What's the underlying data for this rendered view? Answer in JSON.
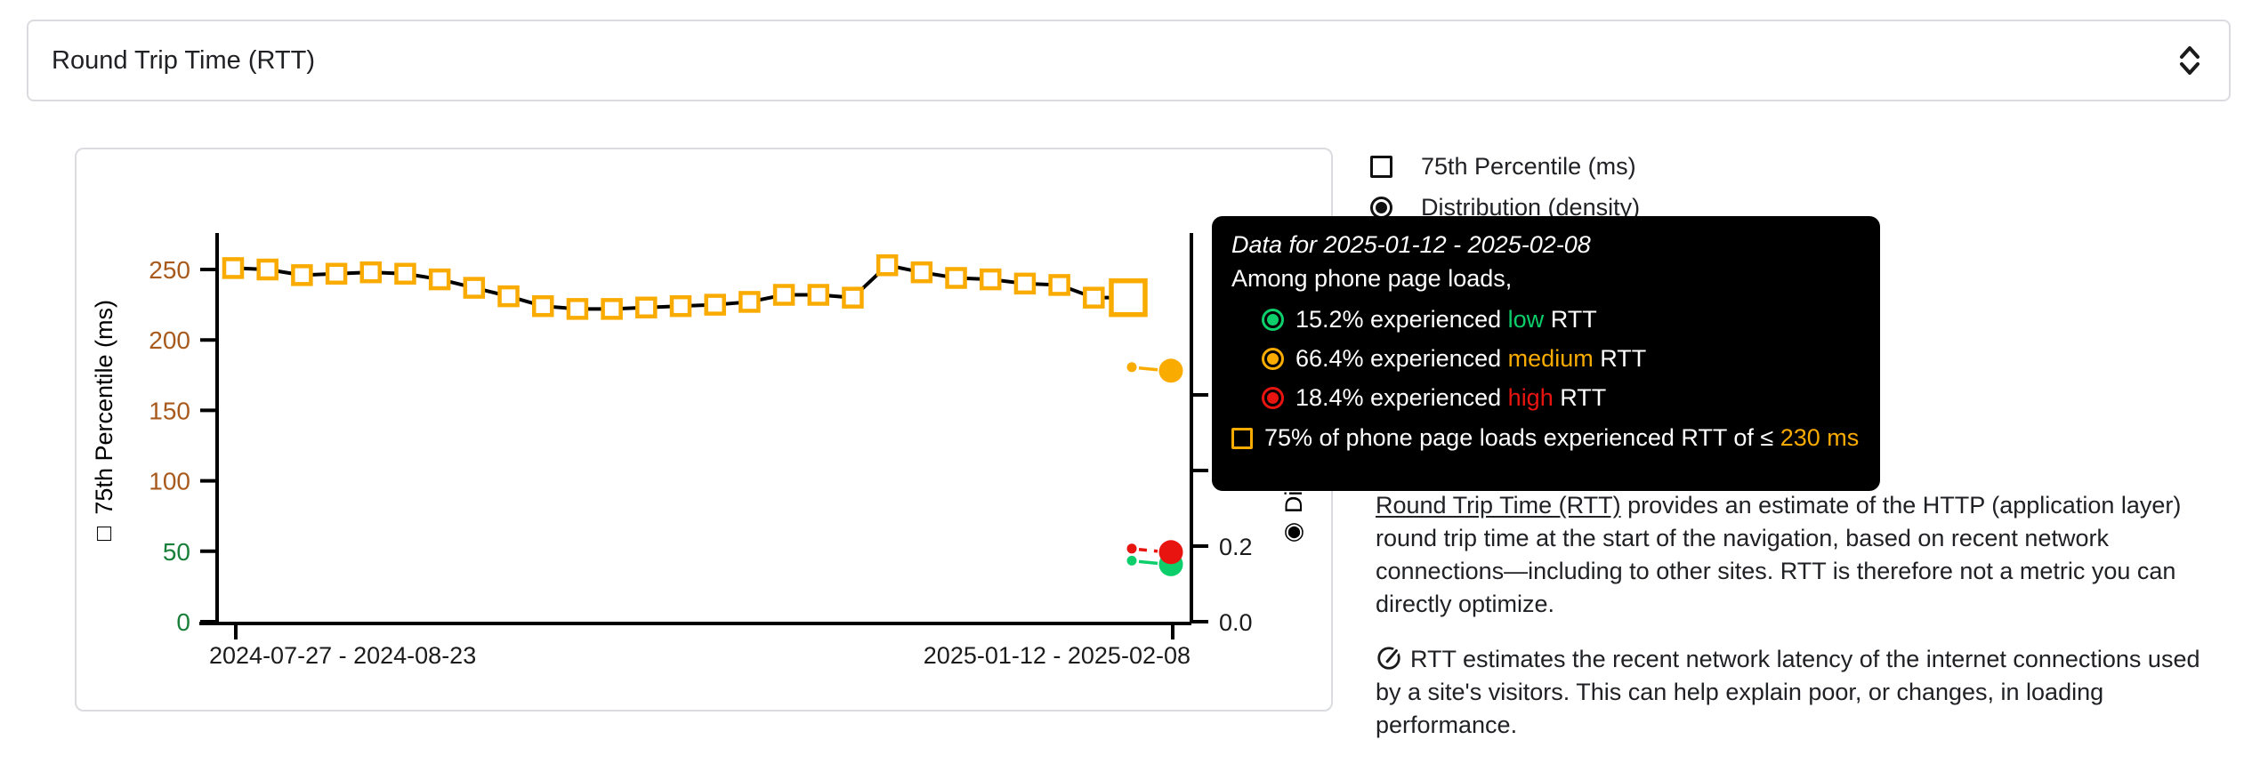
{
  "selector": {
    "value": "Round Trip Time (RTT)",
    "icon": "unfold-more-icon"
  },
  "legend": {
    "items": [
      {
        "label": "75th Percentile (ms)",
        "control": "checkbox",
        "checked": false
      },
      {
        "label": "Distribution (density)",
        "control": "radio",
        "checked": true
      }
    ]
  },
  "chart_data": {
    "type": "line",
    "series": [
      {
        "name": "75th Percentile (ms)",
        "unit": "ms",
        "values": [
          251,
          250,
          246,
          247,
          248,
          247,
          243,
          237,
          231,
          224,
          222,
          222,
          223,
          224,
          225,
          227,
          232,
          232,
          230,
          253,
          248,
          244,
          243,
          240,
          239,
          230,
          230
        ]
      }
    ],
    "highlighted_point": {
      "index": 26,
      "value": 230,
      "period": "2025-01-12 - 2025-02-08"
    },
    "x_tick_labels": [
      "2024-07-27 - 2024-08-23",
      "2025-01-12 - 2025-02-08"
    ],
    "primary_axis": {
      "label": "75th Percentile (ms)",
      "ticks": [
        0,
        50,
        100,
        150,
        200,
        250
      ],
      "range": [
        0,
        265
      ],
      "green_threshold": 75
    },
    "secondary_axis": {
      "label": "Distribution (density)",
      "visible_tick_labels": [
        "0.0",
        "0.2"
      ],
      "tick_step": 0.2,
      "drawn_ticks": [
        0.0,
        0.2,
        0.4,
        0.6
      ]
    },
    "distribution_points": [
      {
        "name": "low",
        "density": 0.152,
        "color": "#0cce6b",
        "dash": false
      },
      {
        "name": "medium",
        "density": 0.664,
        "color": "#f9ab00",
        "dash": false
      },
      {
        "name": "high",
        "density": 0.184,
        "color": "#e81410",
        "dash": true
      }
    ],
    "grid": false,
    "legend_position": "top-right"
  },
  "tooltip": {
    "title": "Data for 2025-01-12 - 2025-02-08",
    "subtitle": "Among phone page loads,",
    "rows": [
      {
        "lead": "15.2% experienced ",
        "rating": "low",
        "tail": " RTT",
        "color": "#0cce6b"
      },
      {
        "lead": "66.4% experienced ",
        "rating": "medium",
        "tail": " RTT",
        "color": "#f9ab00"
      },
      {
        "lead": "18.4% experienced ",
        "rating": "high",
        "tail": " RTT",
        "color": "#e81410"
      }
    ],
    "p75_row": {
      "prefix": "75% of phone page loads experienced RTT of ≤ ",
      "value": "230 ms",
      "value_color": "#f9ab00"
    }
  },
  "description": {
    "p1_link": "Round Trip Time (RTT)",
    "p1_rest": " provides an estimate of the HTTP (application layer) round trip time at the start of the navigation, based on recent network connections—including to other sites. RTT is therefore not a metric you can directly optimize.",
    "p2": "RTT estimates the recent network latency of the internet connections used by a site's visitors. This can help explain poor, or changes, in loading performance."
  },
  "colors": {
    "card_border": "#dadce0",
    "series_line": "#000000",
    "marker_orange": "#f9ab00",
    "axis_tick_green": "#188038",
    "axis_tick_orange": "#a85a1d",
    "axis_text": "#1b1b1b",
    "tooltip_bg": "#000000"
  }
}
